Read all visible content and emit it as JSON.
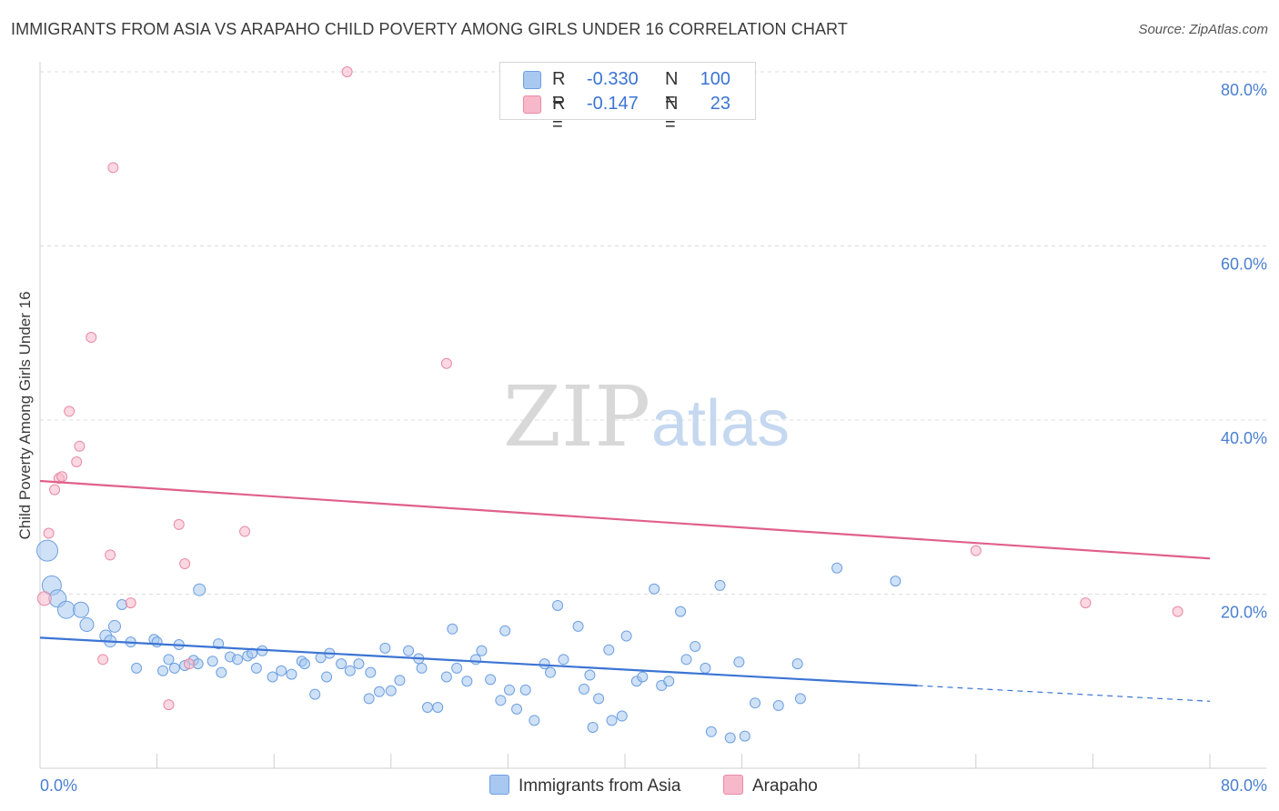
{
  "title": "IMMIGRANTS FROM ASIA VS ARAPAHO CHILD POVERTY AMONG GIRLS UNDER 16 CORRELATION CHART",
  "source": "Source: ZipAtlas.com",
  "watermark": {
    "zip": "ZIP",
    "atlas": "atlas"
  },
  "legend": {
    "rows": [
      {
        "r_label": "R =",
        "r_value": "-0.330",
        "n_label": "N =",
        "n_value": "100",
        "color": "#a8c8f0",
        "border": "#6d9fe0"
      },
      {
        "r_label": "R =",
        "r_value": "-0.147",
        "n_label": "N =",
        "n_value": "23",
        "color": "#f7b8ca",
        "border": "#e88aa5"
      }
    ],
    "bottom": [
      {
        "label": "Immigrants from Asia",
        "color": "#a8c8f0",
        "border": "#6d9fe0"
      },
      {
        "label": "Arapaho",
        "color": "#f7b8ca",
        "border": "#e88aa5"
      }
    ]
  },
  "chart_data": {
    "type": "scatter",
    "title": "IMMIGRANTS FROM ASIA VS ARAPAHO CHILD POVERTY AMONG GIRLS UNDER 16 CORRELATION CHART",
    "ylabel": "Child Poverty Among Girls Under 16",
    "xlabel": "",
    "xlim": [
      0,
      80
    ],
    "ylim": [
      0,
      80
    ],
    "x_tick_labels": [
      "0.0%",
      "80.0%"
    ],
    "y_tick_labels": [
      "20.0%",
      "40.0%",
      "60.0%",
      "80.0%"
    ],
    "y_ticks": [
      20,
      40,
      60,
      80
    ],
    "grid": true,
    "series": [
      {
        "name": "Immigrants from Asia",
        "color": "#a8c8f0",
        "stroke": "#6d9fe0",
        "trend": {
          "x0": 0,
          "y0": 15.0,
          "x1": 60,
          "y1": 9.5,
          "dash_to_x": 80,
          "dash_to_y": 7.7,
          "color": "#3b74d4"
        },
        "points": [
          [
            0.5,
            25.0,
            22
          ],
          [
            0.8,
            21.0,
            20
          ],
          [
            1.2,
            19.5,
            18
          ],
          [
            1.8,
            18.2,
            18
          ],
          [
            2.8,
            18.2,
            16
          ],
          [
            3.2,
            16.5,
            14
          ],
          [
            4.5,
            15.2,
            12
          ],
          [
            5.1,
            16.3,
            12
          ],
          [
            4.8,
            14.6,
            12
          ],
          [
            5.6,
            18.8,
            10
          ],
          [
            6.2,
            14.5,
            10
          ],
          [
            6.6,
            11.5,
            10
          ],
          [
            7.8,
            14.8,
            10
          ],
          [
            8.0,
            14.5,
            10
          ],
          [
            8.4,
            11.2,
            10
          ],
          [
            8.8,
            12.5,
            10
          ],
          [
            9.2,
            11.5,
            10
          ],
          [
            9.5,
            14.2,
            10
          ],
          [
            9.9,
            11.8,
            10
          ],
          [
            10.5,
            12.4,
            10
          ],
          [
            10.8,
            12.0,
            10
          ],
          [
            10.9,
            20.5,
            12
          ],
          [
            11.8,
            12.3,
            10
          ],
          [
            12.2,
            14.3,
            10
          ],
          [
            12.4,
            11.0,
            10
          ],
          [
            13.0,
            12.8,
            10
          ],
          [
            13.5,
            12.5,
            10
          ],
          [
            14.2,
            12.9,
            10
          ],
          [
            14.5,
            13.2,
            10
          ],
          [
            14.8,
            11.5,
            10
          ],
          [
            15.2,
            13.5,
            10
          ],
          [
            15.9,
            10.5,
            10
          ],
          [
            16.5,
            11.2,
            10
          ],
          [
            17.2,
            10.8,
            10
          ],
          [
            17.9,
            12.3,
            10
          ],
          [
            18.1,
            12.0,
            10
          ],
          [
            18.8,
            8.5,
            10
          ],
          [
            19.2,
            12.7,
            10
          ],
          [
            19.6,
            10.5,
            10
          ],
          [
            19.8,
            13.2,
            10
          ],
          [
            20.6,
            12.0,
            10
          ],
          [
            21.2,
            11.2,
            10
          ],
          [
            21.8,
            12.0,
            10
          ],
          [
            22.5,
            8.0,
            10
          ],
          [
            22.6,
            11.0,
            10
          ],
          [
            23.2,
            8.8,
            10
          ],
          [
            23.6,
            13.8,
            10
          ],
          [
            24.0,
            8.9,
            10
          ],
          [
            24.6,
            10.1,
            10
          ],
          [
            25.2,
            13.5,
            10
          ],
          [
            25.9,
            12.6,
            10
          ],
          [
            26.1,
            11.5,
            10
          ],
          [
            26.5,
            7.0,
            10
          ],
          [
            27.2,
            7.0,
            10
          ],
          [
            27.8,
            10.5,
            10
          ],
          [
            28.2,
            16.0,
            10
          ],
          [
            28.5,
            11.5,
            10
          ],
          [
            29.2,
            10.0,
            10
          ],
          [
            29.8,
            12.5,
            10
          ],
          [
            30.2,
            13.5,
            10
          ],
          [
            30.8,
            10.2,
            10
          ],
          [
            31.5,
            7.8,
            10
          ],
          [
            31.8,
            15.8,
            10
          ],
          [
            32.1,
            9.0,
            10
          ],
          [
            32.6,
            6.8,
            10
          ],
          [
            33.2,
            9.0,
            10
          ],
          [
            33.8,
            5.5,
            10
          ],
          [
            34.5,
            12.0,
            10
          ],
          [
            34.9,
            11.0,
            10
          ],
          [
            35.4,
            18.7,
            10
          ],
          [
            35.8,
            12.5,
            10
          ],
          [
            36.8,
            16.3,
            10
          ],
          [
            37.2,
            9.1,
            10
          ],
          [
            37.6,
            10.7,
            10
          ],
          [
            37.8,
            4.7,
            10
          ],
          [
            38.2,
            8.0,
            10
          ],
          [
            38.9,
            13.6,
            10
          ],
          [
            39.1,
            5.5,
            10
          ],
          [
            39.8,
            6.0,
            10
          ],
          [
            40.1,
            15.2,
            10
          ],
          [
            40.8,
            10.0,
            10
          ],
          [
            41.2,
            10.5,
            10
          ],
          [
            42.0,
            20.6,
            10
          ],
          [
            42.5,
            9.5,
            10
          ],
          [
            43.0,
            10.0,
            10
          ],
          [
            43.8,
            18.0,
            10
          ],
          [
            44.2,
            12.5,
            10
          ],
          [
            44.8,
            14.0,
            10
          ],
          [
            45.5,
            11.5,
            10
          ],
          [
            45.9,
            4.2,
            10
          ],
          [
            46.5,
            21.0,
            10
          ],
          [
            47.2,
            3.5,
            10
          ],
          [
            47.8,
            12.2,
            10
          ],
          [
            48.2,
            3.7,
            10
          ],
          [
            48.9,
            7.5,
            10
          ],
          [
            50.5,
            7.2,
            10
          ],
          [
            51.8,
            12.0,
            10
          ],
          [
            52.0,
            8.0,
            10
          ],
          [
            54.5,
            23.0,
            10
          ],
          [
            58.5,
            21.5,
            10
          ]
        ]
      },
      {
        "name": "Arapaho",
        "color": "#f7b8ca",
        "stroke": "#e88aa5",
        "trend": {
          "x0": 0,
          "y0": 33.0,
          "x1": 80,
          "y1": 24.1,
          "color": "#e0608a"
        },
        "points": [
          [
            0.3,
            19.5,
            14
          ],
          [
            0.6,
            27.0,
            10
          ],
          [
            1.0,
            32.0,
            10
          ],
          [
            1.3,
            33.3,
            10
          ],
          [
            1.5,
            33.5,
            10
          ],
          [
            2.0,
            41.0,
            10
          ],
          [
            2.5,
            35.2,
            10
          ],
          [
            2.7,
            37.0,
            10
          ],
          [
            3.5,
            49.5,
            10
          ],
          [
            4.3,
            12.5,
            10
          ],
          [
            4.8,
            24.5,
            10
          ],
          [
            5.0,
            69.0,
            10
          ],
          [
            6.2,
            19.0,
            10
          ],
          [
            8.8,
            7.3,
            10
          ],
          [
            9.5,
            28.0,
            10
          ],
          [
            9.9,
            23.5,
            10
          ],
          [
            10.2,
            12.0,
            10
          ],
          [
            14.0,
            27.2,
            10
          ],
          [
            21.0,
            80.0,
            10
          ],
          [
            27.8,
            46.5,
            10
          ],
          [
            64.0,
            25.0,
            10
          ],
          [
            71.5,
            19.0,
            10
          ],
          [
            77.8,
            18.0,
            10
          ]
        ]
      }
    ]
  }
}
